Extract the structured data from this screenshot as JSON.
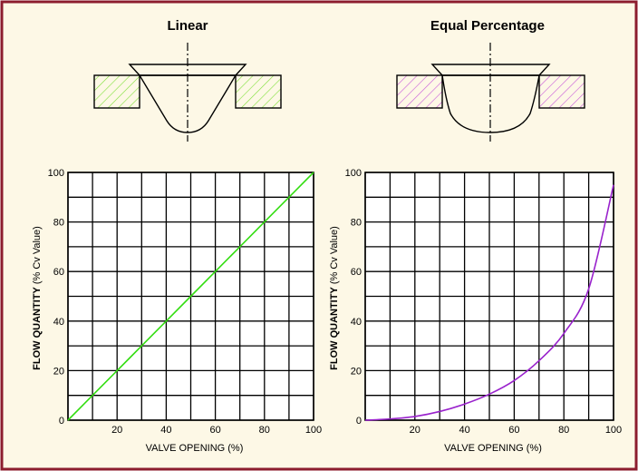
{
  "panels": [
    {
      "title": "Linear",
      "hatch_color": "#7fe03a",
      "curve_color": "#33dd11",
      "xlabel": "VALVE OPENING (%)",
      "ylabel_bold": "FLOW QUANTITY",
      "ylabel_normal": " (% Cv Value)",
      "xticks": [
        "20",
        "40",
        "60",
        "80",
        "100"
      ],
      "yticks": [
        "0",
        "20",
        "40",
        "60",
        "80",
        "100"
      ]
    },
    {
      "title": "Equal Percentage",
      "hatch_color": "#c85ad8",
      "curve_color": "#9922cc",
      "xlabel": "VALVE OPENING (%)",
      "ylabel_bold": "FLOW QUANTITY",
      "ylabel_normal": " (% Cv Value)",
      "xticks": [
        "20",
        "40",
        "60",
        "80",
        "100"
      ],
      "yticks": [
        "0",
        "20",
        "40",
        "60",
        "80",
        "100"
      ]
    }
  ],
  "chart_data": [
    {
      "type": "line",
      "title": "Linear",
      "xlabel": "VALVE OPENING (%)",
      "ylabel": "FLOW QUANTITY (% Cv Value)",
      "xlim": [
        0,
        100
      ],
      "ylim": [
        0,
        100
      ],
      "grid": true,
      "series": [
        {
          "x": [
            0,
            10,
            20,
            30,
            40,
            50,
            60,
            70,
            80,
            90,
            100
          ],
          "y": [
            0,
            10,
            20,
            30,
            40,
            50,
            60,
            70,
            80,
            90,
            100
          ]
        }
      ]
    },
    {
      "type": "line",
      "title": "Equal Percentage",
      "xlabel": "VALVE OPENING (%)",
      "ylabel": "FLOW QUANTITY (% Cv Value)",
      "xlim": [
        0,
        100
      ],
      "ylim": [
        0,
        100
      ],
      "grid": true,
      "series": [
        {
          "x": [
            0,
            10,
            20,
            30,
            40,
            50,
            60,
            70,
            80,
            90,
            100
          ],
          "y": [
            0,
            0.5,
            1.5,
            3.5,
            6.5,
            10.5,
            16,
            24,
            35,
            53,
            95
          ]
        }
      ]
    }
  ]
}
